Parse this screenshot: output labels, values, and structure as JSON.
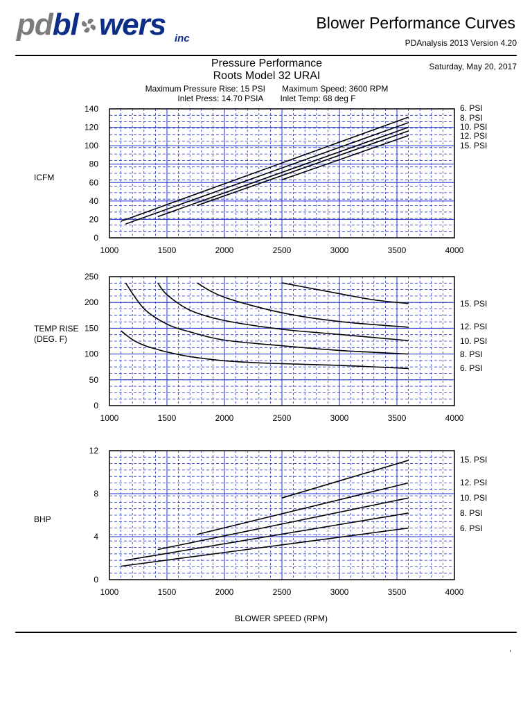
{
  "header": {
    "logo_prefix": "pd",
    "logo_suffix": "bl",
    "logo_suffix2": "wers",
    "logo_sub": "inc",
    "title": "Blower Performance Curves",
    "version": "PDAnalysis 2013 Version 4.20"
  },
  "report": {
    "title_line1": "Pressure Performance",
    "title_line2": "Roots Model 32 URAI",
    "date": "Saturday, May 20, 2017",
    "spec_max_pressure": "Maximum Pressure Rise: 15 PSI",
    "spec_max_speed": "Maximum Speed: 3600 RPM",
    "spec_inlet_press": "Inlet Press: 14.70 PSIA",
    "spec_inlet_temp": "Inlet Temp: 68 deg F"
  },
  "footer": {
    "xlabel": "BLOWER SPEED (RPM)",
    "mark": ","
  },
  "colors": {
    "grid": "#1f2fc8",
    "curve": "#000000",
    "logo_blue": "#0d2e86",
    "logo_gray": "#7c7c7c"
  },
  "chart_data": [
    {
      "type": "line",
      "ylabel": "ICFM",
      "xlim": [
        1000,
        4000
      ],
      "ylim": [
        0,
        140
      ],
      "xticks": [
        1000,
        1500,
        2000,
        2500,
        3000,
        3500,
        4000
      ],
      "yticks": [
        0,
        20,
        40,
        60,
        80,
        100,
        120,
        140
      ],
      "legend_placement": "right",
      "series": [
        {
          "name": "6. PSI",
          "x": [
            1100,
            3600
          ],
          "y": [
            18,
            131
          ]
        },
        {
          "name": "8. PSI",
          "x": [
            1140,
            3600
          ],
          "y": [
            15,
            125
          ]
        },
        {
          "name": "10. PSI",
          "x": [
            1420,
            3600
          ],
          "y": [
            23,
            120
          ]
        },
        {
          "name": "12. PSI",
          "x": [
            1760,
            3600
          ],
          "y": [
            35,
            116
          ]
        },
        {
          "name": "15. PSI",
          "x": [
            2500,
            3600
          ],
          "y": [
            63,
            111
          ]
        }
      ]
    },
    {
      "type": "line",
      "ylabel": "TEMP RISE (DEG. F)",
      "ylabel_lines": [
        "TEMP RISE",
        "(DEG. F)"
      ],
      "xlim": [
        1000,
        4000
      ],
      "ylim": [
        0,
        250
      ],
      "xticks": [
        1000,
        1500,
        2000,
        2500,
        3000,
        3500,
        4000
      ],
      "yticks": [
        0,
        50,
        100,
        150,
        200,
        250
      ],
      "legend_placement": "right",
      "series": [
        {
          "name": "6. PSI",
          "x": [
            1100,
            1200,
            1300,
            1400,
            1500,
            1700,
            2000,
            2400,
            3000,
            3600
          ],
          "y": [
            145,
            128,
            117,
            110,
            104,
            95,
            87,
            82,
            78,
            72
          ]
        },
        {
          "name": "8. PSI",
          "x": [
            1140,
            1300,
            1500,
            1700,
            2000,
            2500,
            3000,
            3600
          ],
          "y": [
            238,
            188,
            158,
            143,
            127,
            116,
            107,
            100
          ]
        },
        {
          "name": "10. PSI",
          "x": [
            1420,
            1500,
            1700,
            2000,
            2500,
            3000,
            3600
          ],
          "y": [
            238,
            215,
            185,
            165,
            148,
            138,
            126
          ]
        },
        {
          "name": "12. PSI",
          "x": [
            1760,
            2000,
            2500,
            3000,
            3600
          ],
          "y": [
            238,
            210,
            180,
            163,
            152
          ]
        },
        {
          "name": "15. PSI",
          "x": [
            2500,
            3000,
            3300,
            3600
          ],
          "y": [
            238,
            217,
            205,
            198
          ]
        }
      ]
    },
    {
      "type": "line",
      "ylabel": "BHP",
      "xlim": [
        1000,
        4000
      ],
      "ylim": [
        0,
        12
      ],
      "xticks": [
        1000,
        1500,
        2000,
        2500,
        3000,
        3500,
        4000
      ],
      "yticks": [
        0,
        4,
        8,
        12
      ],
      "legend_placement": "right",
      "series": [
        {
          "name": "6. PSI",
          "x": [
            1100,
            3600
          ],
          "y": [
            1.25,
            4.8
          ]
        },
        {
          "name": "8. PSI",
          "x": [
            1140,
            3600
          ],
          "y": [
            1.8,
            6.2
          ]
        },
        {
          "name": "10. PSI",
          "x": [
            1420,
            3600
          ],
          "y": [
            2.8,
            7.6
          ]
        },
        {
          "name": "12. PSI",
          "x": [
            1760,
            3600
          ],
          "y": [
            4.2,
            9.0
          ]
        },
        {
          "name": "15. PSI",
          "x": [
            2500,
            3600
          ],
          "y": [
            7.6,
            11.1
          ]
        }
      ]
    }
  ]
}
